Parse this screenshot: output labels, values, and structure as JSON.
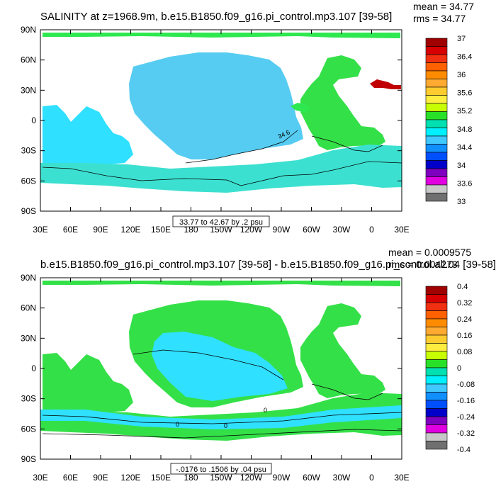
{
  "chart_data": [
    {
      "type": "heatmap",
      "title": "SALINITY at z=1968.9m, b.e15.B1850.f09_g16.pi_control.mp3.107 [39-58]",
      "stats": {
        "mean": "mean = 34.77",
        "rms": "rms = 34.77"
      },
      "x_ticks": [
        "30E",
        "60E",
        "90E",
        "120E",
        "150E",
        "180",
        "150W",
        "120W",
        "90W",
        "60W",
        "30W",
        "0",
        "30E"
      ],
      "y_ticks": [
        "90N",
        "60N",
        "30N",
        "0",
        "30S",
        "60S",
        "90S"
      ],
      "xlim": [
        30,
        390
      ],
      "ylim": [
        -90,
        90
      ],
      "contour_labels": [
        "34.6"
      ],
      "range_note": "33.77 to 42.67 by .2 psu",
      "colorbar": {
        "labels": [
          "37",
          "36.4",
          "36",
          "35.6",
          "35.2",
          "34.8",
          "34.4",
          "34",
          "33.6",
          "33"
        ],
        "colors": [
          "#a00000",
          "#d80000",
          "#f03010",
          "#ff6000",
          "#ff8c00",
          "#ffaa30",
          "#ffcc30",
          "#ffee40",
          "#c8ff00",
          "#28e028",
          "#00e0b0",
          "#00f0ff",
          "#40c8ff",
          "#1090ff",
          "#0050ff",
          "#0000c8",
          "#8000c0",
          "#e000e0",
          "#c8c8c8",
          "#707070"
        ]
      },
      "fill_colors": {
        "ocean_main": "#2fe0ff",
        "pacific": "#56ccf2",
        "southern": "#3ce0d0",
        "atlantic": "#34e048",
        "arctic": "#2ee850",
        "med": "#c00000",
        "land": "#ffffff",
        "mediterranean_outflow": "#2ee850"
      }
    },
    {
      "type": "heatmap",
      "title": "b.e15.B1850.f09_g16.pi_control.mp3.107 [39-58] - b.e15.B1850.f09_g16.pi_control.all.04 [39-58]",
      "stats": {
        "mean": "mean = 0.0009575",
        "rms": "rms = 0.004273"
      },
      "x_ticks": [
        "30E",
        "60E",
        "90E",
        "120E",
        "150E",
        "180",
        "150W",
        "120W",
        "90W",
        "60W",
        "30W",
        "0",
        "30E"
      ],
      "y_ticks": [
        "90N",
        "60N",
        "30N",
        "0",
        "30S",
        "60S",
        "90S"
      ],
      "xlim": [
        30,
        390
      ],
      "ylim": [
        -90,
        90
      ],
      "contour_labels": [
        "0",
        "0",
        "0"
      ],
      "range_note": "-.0176 to .1506 by .04 psu",
      "colorbar": {
        "labels": [
          "0.4",
          "0.32",
          "0.24",
          "0.16",
          "0.08",
          "0",
          "-0.08",
          "-0.16",
          "-0.24",
          "-0.32",
          "-0.4"
        ],
        "colors": [
          "#a00000",
          "#d80000",
          "#f03010",
          "#ff6000",
          "#ff8c00",
          "#ffaa30",
          "#ffcc30",
          "#ffee40",
          "#c8ff00",
          "#28e028",
          "#00e0b0",
          "#00f0ff",
          "#40c8ff",
          "#1090ff",
          "#0050ff",
          "#0000c8",
          "#8000c0",
          "#e000e0",
          "#c8c8c8",
          "#707070"
        ]
      },
      "fill_colors": {
        "positive": "#34e048",
        "negative": "#2fe0ff",
        "land": "#ffffff"
      }
    }
  ]
}
